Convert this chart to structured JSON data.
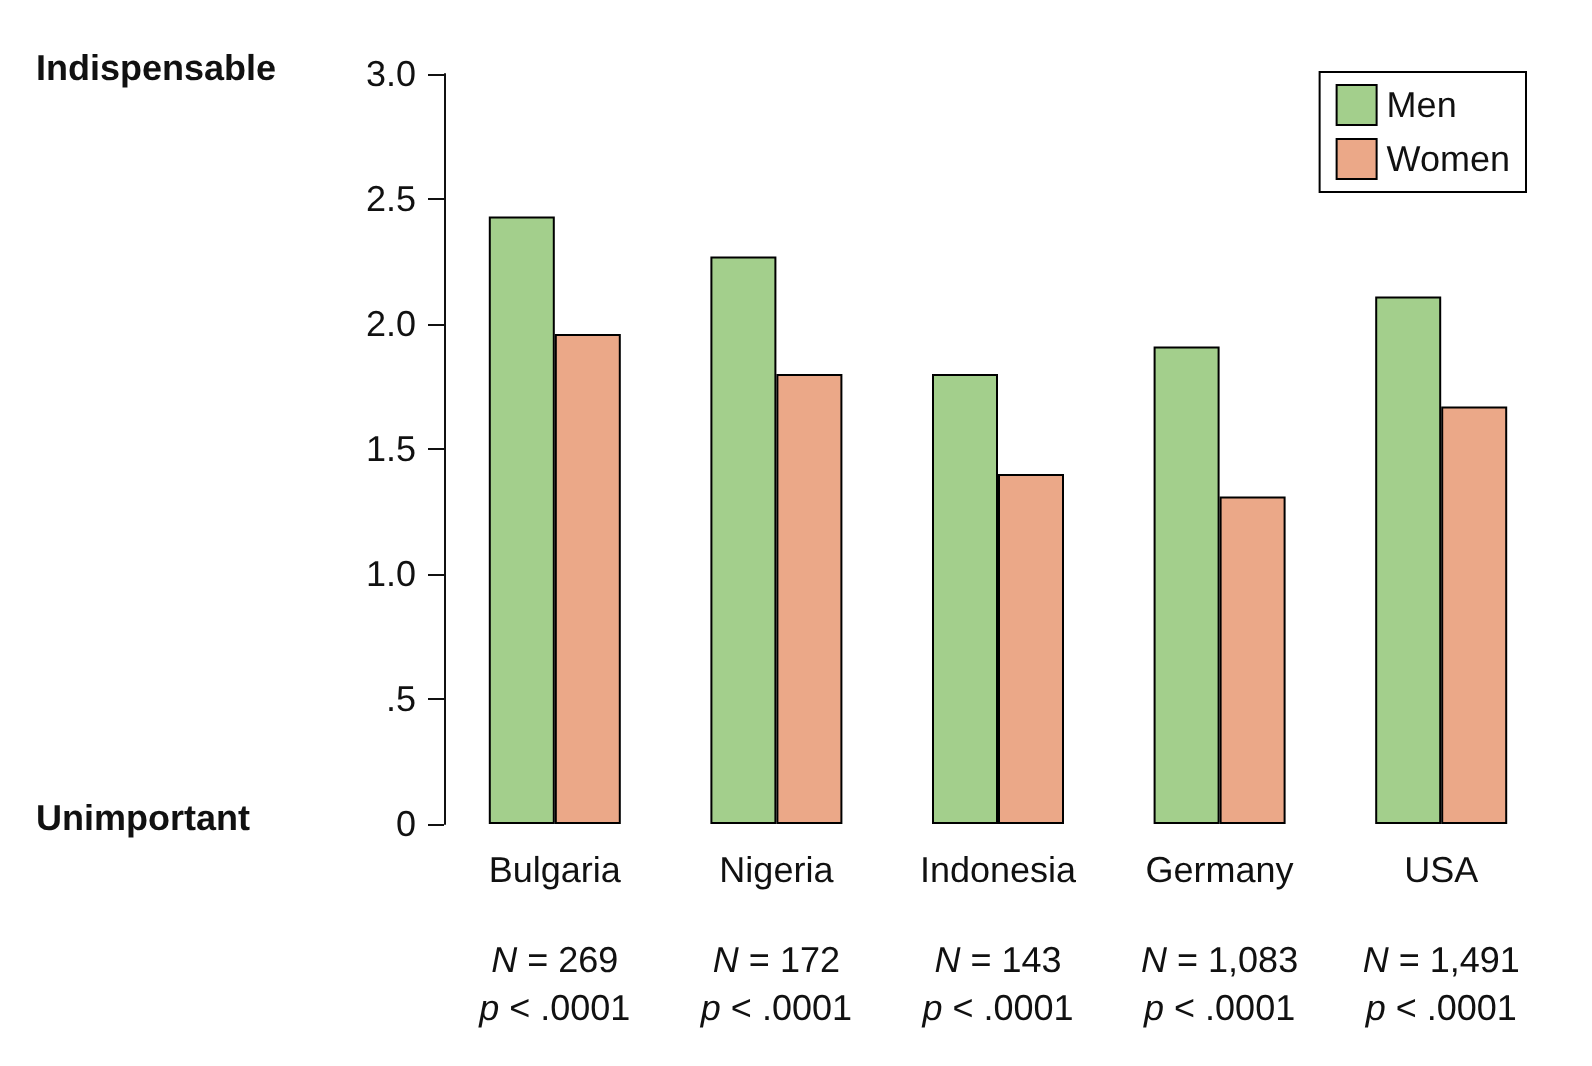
{
  "chart_data": {
    "type": "bar",
    "categories": [
      "Bulgaria",
      "Nigeria",
      "Indonesia",
      "Germany",
      "USA"
    ],
    "series": [
      {
        "name": "Men",
        "color": "#a3cf8c",
        "values": [
          2.43,
          2.27,
          1.8,
          1.91,
          2.11
        ]
      },
      {
        "name": "Women",
        "color": "#eba888",
        "values": [
          1.96,
          1.8,
          1.4,
          1.31,
          1.67
        ]
      }
    ],
    "ylim": [
      0,
      3
    ],
    "yticks": [
      0,
      {
        "value": 0.5,
        "label": ".5"
      },
      {
        "value": 1,
        "label": "1.0"
      },
      1.5,
      {
        "value": 2,
        "label": "2.0"
      },
      2.5,
      {
        "value": 3,
        "label": "3.0"
      }
    ],
    "grid": false,
    "legend": "top right",
    "annotations": [
      "Indispensable",
      "Unimportant",
      "N = 269\np < .0001",
      "N = 172\np < .0001",
      "N = 143\np < .0001",
      "N = 1,083\np < .0001",
      "N = 1,491\np < .0001"
    ]
  }
}
